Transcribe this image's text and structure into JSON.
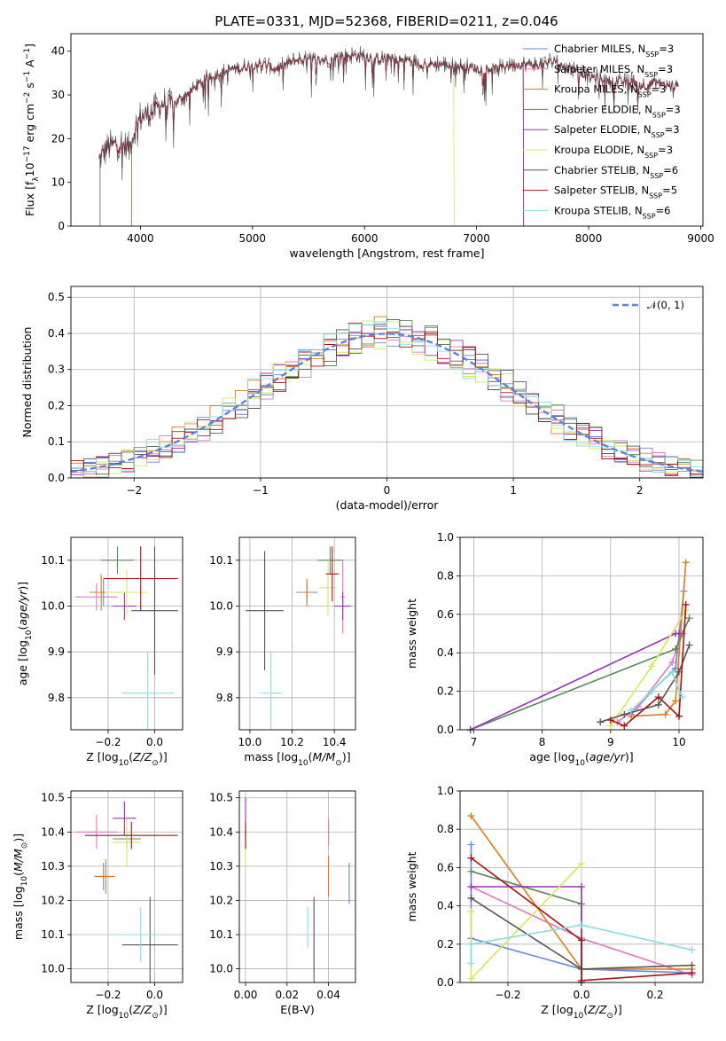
{
  "title": "PLATE=0331, MJD=52368, FIBERID=0211, z=0.046",
  "colors": [
    "#6688dd",
    "#e377c2",
    "#e07b1a",
    "#5a8a5a",
    "#9b30b8",
    "#d4e85a",
    "#555555",
    "#aa1111",
    "#88dddd"
  ],
  "models": [
    "Chabrier MILES",
    "Salpeter MILES",
    "Kroupa MILES",
    "Chabrier ELODIE",
    "Salpeter ELODIE",
    "Kroupa ELODIE",
    "Chabrier STELIB",
    "Salpeter STELIB",
    "Kroupa STELIB"
  ],
  "nssp": [
    "3",
    "3",
    "3",
    "3",
    "3",
    "3",
    "6",
    "5",
    "6"
  ],
  "nssp_prefix": "N",
  "nssp_sub": "SSP",
  "chart_data": [
    {
      "type": "line",
      "xlabel": "wavelength [Angstrom, rest frame]",
      "ylabel_html": "Flux [f_λ 10^-17 erg cm^-2 s^-1 A^-1]",
      "xlim": [
        3380,
        9020
      ],
      "ylim": [
        0,
        44
      ],
      "xticks": [
        "4000",
        "5000",
        "6000",
        "7000",
        "8000",
        "9000"
      ],
      "yticks": [
        "0",
        "10",
        "20",
        "30",
        "40"
      ],
      "continuum": [
        [
          3630,
          15
        ],
        [
          3700,
          18
        ],
        [
          3800,
          19
        ],
        [
          3900,
          18
        ],
        [
          3950,
          22
        ],
        [
          4000,
          25
        ],
        [
          4100,
          26
        ],
        [
          4200,
          28
        ],
        [
          4300,
          28
        ],
        [
          4400,
          30
        ],
        [
          4500,
          32
        ],
        [
          4600,
          34
        ],
        [
          4700,
          35
        ],
        [
          4800,
          36
        ],
        [
          4900,
          36
        ],
        [
          5000,
          37
        ],
        [
          5100,
          37
        ],
        [
          5200,
          36
        ],
        [
          5300,
          37
        ],
        [
          5400,
          38
        ],
        [
          5500,
          38
        ],
        [
          5600,
          38
        ],
        [
          5700,
          38
        ],
        [
          5800,
          39
        ],
        [
          5900,
          39
        ],
        [
          6000,
          39
        ],
        [
          6100,
          38
        ],
        [
          6200,
          38.5
        ],
        [
          6300,
          38
        ],
        [
          6400,
          38
        ],
        [
          6500,
          37
        ],
        [
          6600,
          37
        ],
        [
          6700,
          37
        ],
        [
          6800,
          36.5
        ],
        [
          6900,
          36.5
        ],
        [
          7000,
          36
        ],
        [
          7100,
          36
        ],
        [
          7200,
          36
        ],
        [
          7300,
          37
        ],
        [
          7400,
          37
        ],
        [
          7500,
          37
        ],
        [
          7600,
          37
        ],
        [
          7700,
          38
        ],
        [
          7800,
          36
        ],
        [
          7900,
          36
        ],
        [
          8000,
          34
        ],
        [
          8100,
          34
        ],
        [
          8200,
          33
        ],
        [
          8300,
          33
        ],
        [
          8400,
          33
        ],
        [
          8500,
          32
        ],
        [
          8600,
          33
        ],
        [
          8700,
          32
        ],
        [
          8800,
          32
        ]
      ],
      "series_end": [
        8800,
        8800,
        7420,
        7420,
        7420,
        6800,
        8800,
        8800,
        8800
      ],
      "series_start": [
        3630,
        3630,
        3630,
        3920,
        3630,
        3920,
        3630,
        3630,
        3630
      ]
    },
    {
      "type": "histogram",
      "xlabel": "(data-model)/error",
      "ylabel": "Normed distribution",
      "xlim": [
        -2.5,
        2.5
      ],
      "ylim": [
        0,
        0.53
      ],
      "xticks": [
        "−2",
        "−1",
        "0",
        "1",
        "2"
      ],
      "yticks": [
        "0.0",
        "0.1",
        "0.2",
        "0.3",
        "0.4",
        "0.5"
      ],
      "legend": "𝒩(0, 1)",
      "bin_width": 0.1
    },
    {
      "type": "scatter-errorbar",
      "xlabel": "Z [log10(Z/Z⊙)]",
      "ylabel": "age [log10(age/yr)]",
      "xlim": [
        -0.36,
        0.12
      ],
      "ylim": [
        9.73,
        10.15
      ],
      "xticks": [
        "−0.2",
        "0.0"
      ],
      "yticks": [
        "9.8",
        "9.9",
        "10.0",
        "10.1"
      ],
      "points": [
        [
          -0.22,
          10.03,
          0.06,
          0.03
        ],
        [
          -0.25,
          10.02,
          0.09,
          0.03
        ],
        [
          -0.23,
          10.03,
          0.04,
          0.04
        ],
        [
          -0.16,
          10.1,
          0.07,
          0.03
        ],
        [
          -0.13,
          10.0,
          0.05,
          0.03
        ],
        [
          -0.12,
          10.03,
          0.09,
          0.05
        ],
        [
          0.0,
          9.99,
          0.1,
          0.14
        ],
        [
          -0.06,
          10.06,
          0.16,
          0.07
        ],
        [
          -0.03,
          9.81,
          0.11,
          0.09
        ]
      ]
    },
    {
      "type": "scatter-errorbar",
      "xlabel": "mass [log10(M/M⊙)]",
      "ylabel": "",
      "xlim": [
        9.95,
        10.5
      ],
      "ylim": [
        9.73,
        10.15
      ],
      "xticks": [
        "10.0",
        "10.2",
        "10.4"
      ],
      "yticks": [
        "9.8",
        "9.9",
        "10.0",
        "10.1"
      ],
      "points": [
        [
          10.27,
          10.03,
          0.05,
          0.02
        ],
        [
          10.44,
          10.02,
          0.01,
          0.08
        ],
        [
          10.27,
          10.03,
          0.02,
          0.03
        ],
        [
          10.38,
          10.1,
          0.06,
          0.03
        ],
        [
          10.44,
          10.0,
          0.04,
          0.03
        ],
        [
          10.37,
          10.04,
          0.04,
          0.06
        ],
        [
          10.07,
          9.99,
          0.09,
          0.13
        ],
        [
          10.39,
          10.07,
          0.03,
          0.06
        ],
        [
          10.1,
          9.81,
          0.05,
          0.09
        ]
      ]
    },
    {
      "type": "line",
      "xlabel": "age [log10(age/yr)]",
      "ylabel": "mass weight",
      "xlim": [
        6.8,
        10.35
      ],
      "ylim": [
        0,
        1.0
      ],
      "xticks": [
        "7",
        "8",
        "9",
        "10"
      ],
      "yticks": [
        "0.0",
        "0.2",
        "0.4",
        "0.6",
        "0.8",
        "1.0"
      ],
      "series": [
        [
          [
            9.3,
            0.08
          ],
          [
            9.6,
            0.2
          ],
          [
            9.95,
            0.32
          ],
          [
            10.07,
            0.72
          ]
        ],
        [
          [
            9.1,
            0.04
          ],
          [
            9.4,
            0.12
          ],
          [
            9.9,
            0.35
          ],
          [
            10.05,
            0.5
          ]
        ],
        [
          [
            9.3,
            0.07
          ],
          [
            9.8,
            0.08
          ],
          [
            9.95,
            0.15
          ],
          [
            10.1,
            0.87
          ]
        ],
        [
          [
            6.95,
            0.0
          ],
          [
            9.95,
            0.42
          ],
          [
            10.15,
            0.58
          ]
        ],
        [
          [
            6.95,
            0.0
          ],
          [
            9.95,
            0.5
          ],
          [
            10.0,
            0.5
          ]
        ],
        [
          [
            9.0,
            0.02
          ],
          [
            9.6,
            0.33
          ],
          [
            10.1,
            0.62
          ]
        ],
        [
          [
            8.85,
            0.04
          ],
          [
            9.2,
            0.08
          ],
          [
            9.7,
            0.13
          ],
          [
            10.0,
            0.3
          ],
          [
            10.15,
            0.44
          ]
        ],
        [
          [
            9.0,
            0.05
          ],
          [
            9.2,
            0.02
          ],
          [
            9.7,
            0.17
          ],
          [
            10.0,
            0.07
          ],
          [
            10.1,
            0.65
          ]
        ],
        [
          [
            9.3,
            0.1
          ],
          [
            9.6,
            0.2
          ],
          [
            9.9,
            0.3
          ],
          [
            10.0,
            0.2
          ],
          [
            10.05,
            0.17
          ]
        ]
      ]
    },
    {
      "type": "scatter-errorbar",
      "xlabel": "Z [log10(Z/Z⊙)]",
      "ylabel": "mass [log10(M/M⊙)]",
      "xlim": [
        -0.36,
        0.12
      ],
      "ylim": [
        9.96,
        10.52
      ],
      "xticks": [
        "−0.2",
        "0.0"
      ],
      "yticks": [
        "10.0",
        "10.1",
        "10.2",
        "10.3",
        "10.4",
        "10.5"
      ],
      "points": [
        [
          -0.22,
          10.27,
          0.04,
          0.04
        ],
        [
          -0.25,
          10.4,
          0.09,
          0.05
        ],
        [
          -0.21,
          10.27,
          0.04,
          0.05
        ],
        [
          -0.12,
          10.38,
          0.06,
          0.03
        ],
        [
          -0.13,
          10.44,
          0.05,
          0.05
        ],
        [
          -0.12,
          10.37,
          0.06,
          0.07
        ],
        [
          -0.02,
          10.07,
          0.12,
          0.14
        ],
        [
          -0.1,
          10.39,
          0.2,
          0.04
        ],
        [
          -0.06,
          10.1,
          0.09,
          0.08
        ]
      ]
    },
    {
      "type": "scatter-errorbar",
      "xlabel": "E(B-V)",
      "ylabel": "",
      "xlim": [
        -0.003,
        0.053
      ],
      "ylim": [
        9.96,
        10.52
      ],
      "xticks": [
        "0.00",
        "0.02",
        "0.04"
      ],
      "yticks": [
        "10.0",
        "10.1",
        "10.2",
        "10.3",
        "10.4",
        "10.5"
      ],
      "points": [
        [
          0.05,
          10.25,
          0.0,
          0.06
        ],
        [
          0.04,
          10.4,
          0.0,
          0.04
        ],
        [
          0.04,
          10.27,
          0.0,
          0.06
        ],
        [
          0.0,
          10.38,
          0.0,
          0.03
        ],
        [
          0.0,
          10.44,
          0.0,
          0.06
        ],
        [
          0.0,
          10.33,
          0.0,
          0.03
        ],
        [
          0.033,
          10.07,
          0.0,
          0.14
        ],
        [
          0.0,
          10.39,
          0.0,
          0.04
        ],
        [
          0.03,
          10.12,
          0.0,
          0.06
        ]
      ]
    },
    {
      "type": "line",
      "xlabel": "Z [log10(Z/Z⊙)]",
      "ylabel": "mass weight",
      "xlim": [
        -0.33,
        0.33
      ],
      "ylim": [
        0,
        1.0
      ],
      "xticks": [
        "−0.2",
        "0.0",
        "0.2"
      ],
      "yticks": [
        "0.0",
        "0.2",
        "0.4",
        "0.6",
        "0.8",
        "1.0"
      ],
      "series": [
        [
          [
            -0.3,
            0.72
          ],
          [
            -0.3,
            0.23
          ],
          [
            0.0,
            0.07
          ],
          [
            0.3,
            0.05
          ]
        ],
        [
          [
            -0.3,
            0.5
          ],
          [
            0.0,
            0.23
          ],
          [
            0.3,
            0.04
          ]
        ],
        [
          [
            -0.3,
            0.87
          ],
          [
            0.0,
            0.07
          ],
          [
            0.3,
            0.07
          ]
        ],
        [
          [
            -0.3,
            0.58
          ],
          [
            0.0,
            0.41
          ],
          [
            0.0,
            0.0
          ]
        ],
        [
          [
            -0.3,
            0.5
          ],
          [
            0.0,
            0.5
          ],
          [
            0.0,
            0.0
          ]
        ],
        [
          [
            -0.3,
            0.37
          ],
          [
            -0.3,
            0.02
          ],
          [
            0.0,
            0.62
          ]
        ],
        [
          [
            -0.3,
            0.44
          ],
          [
            0.0,
            0.07
          ],
          [
            0.3,
            0.09
          ]
        ],
        [
          [
            -0.3,
            0.65
          ],
          [
            0.0,
            0.22
          ],
          [
            0.0,
            0.01
          ],
          [
            0.3,
            0.05
          ]
        ],
        [
          [
            -0.3,
            0.1
          ],
          [
            -0.3,
            0.2
          ],
          [
            0.0,
            0.3
          ],
          [
            0.3,
            0.17
          ]
        ]
      ]
    }
  ]
}
